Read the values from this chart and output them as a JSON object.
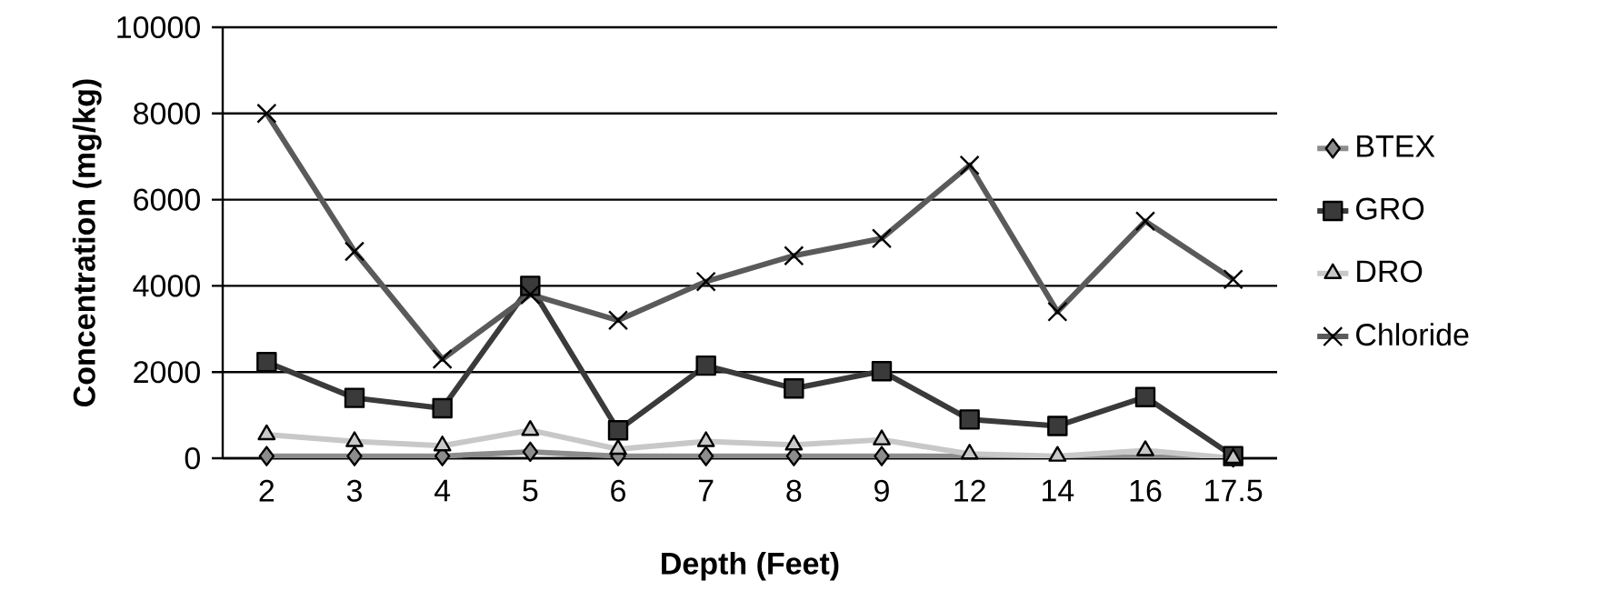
{
  "chart_data": {
    "type": "line",
    "xlabel": "Depth (Feet)",
    "ylabel": "Concentration (mg/kg)",
    "categories": [
      "2",
      "3",
      "4",
      "5",
      "6",
      "7",
      "8",
      "9",
      "12",
      "14",
      "16",
      "17.5"
    ],
    "series": [
      {
        "name": "BTEX",
        "color": "#8c8c8c",
        "marker": "diamond",
        "values": [
          50,
          50,
          50,
          150,
          50,
          50,
          50,
          50,
          null,
          null,
          null,
          20
        ]
      },
      {
        "name": "GRO",
        "color": "#3a3a3a",
        "marker": "square",
        "values": [
          2230,
          1400,
          1160,
          4000,
          650,
          2150,
          1620,
          2020,
          900,
          750,
          1420,
          50
        ]
      },
      {
        "name": "DRO",
        "color": "#c8c8c8",
        "marker": "triangle",
        "values": [
          550,
          390,
          290,
          650,
          210,
          390,
          310,
          430,
          100,
          50,
          180,
          0
        ]
      },
      {
        "name": "Chloride",
        "color": "#5a5a5a",
        "marker": "cross",
        "values": [
          8000,
          4800,
          2300,
          3800,
          3200,
          4100,
          4700,
          5100,
          6800,
          3400,
          5500,
          4150
        ]
      }
    ],
    "ylim": [
      0,
      10000
    ],
    "yticks": [
      0,
      2000,
      4000,
      6000,
      8000,
      10000
    ],
    "grid": "y",
    "legend": "right",
    "line_style": "solid"
  }
}
